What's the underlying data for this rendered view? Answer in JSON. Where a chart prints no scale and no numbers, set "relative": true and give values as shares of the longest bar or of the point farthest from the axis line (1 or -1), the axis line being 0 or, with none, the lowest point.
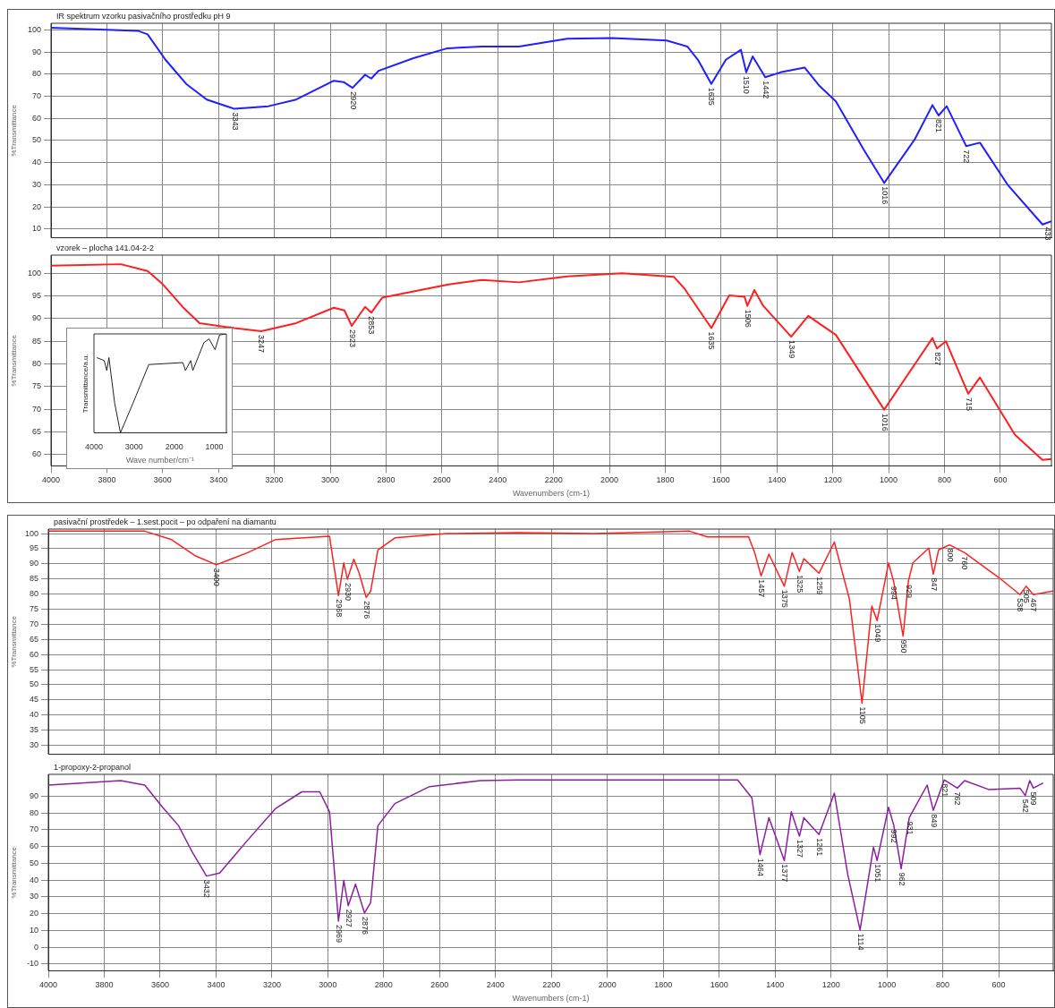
{
  "chart_data": [
    {
      "type": "line",
      "title": "IR spektrum vzorku pasivačního prostředku pH 9",
      "ylabel": "%Transmittance",
      "xlim": [
        4000,
        417
      ],
      "xticks": [
        4000,
        3800,
        3600,
        3400,
        3200,
        3000,
        2800,
        2600,
        2400,
        2200,
        2000,
        1800,
        1600,
        1400,
        1200,
        1000,
        800,
        600
      ],
      "ylim": [
        6,
        103
      ],
      "yticks": [
        100,
        90,
        80,
        70,
        60,
        50,
        40,
        30,
        20,
        10
      ],
      "grid": true,
      "tick_labels": "y",
      "series": [
        {
          "color": "#1f1fff",
          "x": [
            4000,
            3689,
            3654,
            3590,
            3516,
            3442,
            3343,
            3221,
            3122,
            2987,
            2952,
            2920,
            2875,
            2853,
            2827,
            2702,
            2580,
            2458,
            2324,
            2151,
            1990,
            1795,
            1721,
            1683,
            1635,
            1583,
            1529,
            1510,
            1487,
            1442,
            1388,
            1301,
            1250,
            1189,
            1090,
            1016,
            907,
            843,
            821,
            792,
            722,
            673,
            574,
            449,
            417
          ],
          "values": [
            101,
            99.6,
            98,
            86.5,
            75.6,
            68.5,
            64.3,
            65.5,
            68.5,
            77,
            76.4,
            73.8,
            79.7,
            78,
            81.5,
            87.2,
            91.7,
            92.5,
            92.5,
            96,
            96.3,
            95.2,
            92.5,
            86.5,
            75.6,
            86.5,
            91,
            80.8,
            88,
            78.6,
            80.8,
            83,
            75,
            67.7,
            46,
            30.8,
            50.4,
            66,
            61.3,
            65.5,
            47.4,
            49,
            30,
            12,
            13.5
          ]
        }
      ],
      "annotations": [
        {
          "text": "3343",
          "x": 3343,
          "y": 64.3
        },
        {
          "text": "2920",
          "x": 2920,
          "y": 73.8
        },
        {
          "text": "1635",
          "x": 1635,
          "y": 75.6
        },
        {
          "text": "1510",
          "x": 1510,
          "y": 80.8
        },
        {
          "text": "1442",
          "x": 1442,
          "y": 78.6
        },
        {
          "text": "1016",
          "x": 1016,
          "y": 30.8
        },
        {
          "text": "821",
          "x": 821,
          "y": 61.3
        },
        {
          "text": "722",
          "x": 722,
          "y": 47.4
        },
        {
          "text": "433",
          "x": 433,
          "y": 12.5
        }
      ]
    },
    {
      "type": "line",
      "title": "vzorek – plocha 141.04-2-2",
      "xlabel": "Wavenumbers (cm-1)",
      "ylabel": "%Transmittance",
      "xlim": [
        4000,
        417
      ],
      "xticks": [
        4000,
        3800,
        3600,
        3400,
        3200,
        3000,
        2800,
        2600,
        2400,
        2200,
        2000,
        1800,
        1600,
        1400,
        1200,
        1000,
        800,
        600
      ],
      "ylim": [
        57.5,
        104
      ],
      "yticks": [
        100,
        95,
        90,
        85,
        80,
        75,
        70,
        65,
        60
      ],
      "grid": true,
      "series": [
        {
          "color": "#ff1f1f",
          "x": [
            4000,
            3750,
            3654,
            3603,
            3529,
            3468,
            3343,
            3247,
            3122,
            2987,
            2949,
            2923,
            2875,
            2853,
            2814,
            2580,
            2458,
            2324,
            2151,
            1955,
            1769,
            1731,
            1635,
            1571,
            1516,
            1506,
            1481,
            1449,
            1349,
            1288,
            1189,
            1016,
            843,
            827,
            795,
            715,
            673,
            548,
            449,
            417
          ],
          "values": [
            101.7,
            102,
            100.5,
            97.8,
            92.6,
            89,
            87.9,
            87.2,
            89,
            92.4,
            91.8,
            88.4,
            92.6,
            91.3,
            94.6,
            97.5,
            98.5,
            98,
            99.3,
            100,
            99.2,
            96.6,
            87.9,
            95.1,
            94.8,
            92.8,
            96.3,
            92.8,
            86,
            90.6,
            86.4,
            69.9,
            85.7,
            83.4,
            85,
            73.4,
            77,
            64.4,
            58.8,
            59
          ]
        }
      ],
      "annotations": [
        {
          "text": "3247",
          "x": 3247,
          "y": 87.2
        },
        {
          "text": "2923",
          "x": 2923,
          "y": 88.4
        },
        {
          "text": "2853",
          "x": 2853,
          "y": 91.3
        },
        {
          "text": "1635",
          "x": 1635,
          "y": 87.9
        },
        {
          "text": "1506",
          "x": 1506,
          "y": 92.8
        },
        {
          "text": "1349",
          "x": 1349,
          "y": 86
        },
        {
          "text": "1016",
          "x": 1016,
          "y": 69.9
        },
        {
          "text": "827",
          "x": 827,
          "y": 83.4
        },
        {
          "text": "715",
          "x": 715,
          "y": 73.4
        }
      ]
    },
    {
      "type": "line",
      "relative": true,
      "xlabel": "Wave number/cm⁻¹",
      "ylabel": "Transmittance/a.u.",
      "xlim": [
        4000,
        700
      ],
      "xticks": [
        4000,
        3000,
        2000,
        1000
      ],
      "series": [
        {
          "color": "#222222",
          "x": [
            3928,
            3745,
            3680,
            3627,
            3484,
            3340,
            3026,
            2634,
            1785,
            1720,
            1589,
            1536,
            1262,
            1133,
            982,
            870,
            707
          ],
          "values": [
            0.76,
            0.73,
            0.63,
            0.76,
            0.3,
            0,
            0.3,
            0.69,
            0.71,
            0.63,
            0.73,
            0.63,
            0.91,
            0.95,
            0.84,
            0.99,
            1
          ]
        }
      ]
    },
    {
      "type": "line",
      "title": "pasivační prostředek – 1.sest.pocit – po odpaření na diamantu",
      "ylabel": "%Transmittance",
      "xlim": [
        4000,
        405
      ],
      "xticks": [
        4000,
        3800,
        3600,
        3400,
        3200,
        3000,
        2800,
        2600,
        2400,
        2200,
        2000,
        1800,
        1600,
        1400,
        1200,
        1000,
        800,
        600
      ],
      "ylim": [
        27,
        101.5
      ],
      "yticks": [
        100,
        95,
        90,
        85,
        80,
        75,
        70,
        65,
        60,
        55,
        50,
        45,
        40,
        35,
        30
      ],
      "grid": true,
      "tick_labels": "y",
      "series": [
        {
          "color": "#ff2020",
          "x": [
            4000,
            3655,
            3559,
            3473,
            3399,
            3287,
            3188,
            2994,
            2962,
            2943,
            2930,
            2907,
            2888,
            2863,
            2847,
            2821,
            2760,
            2575,
            2320,
            2048,
            1706,
            1642,
            1495,
            1473,
            1450,
            1422,
            1367,
            1339,
            1313,
            1297,
            1243,
            1188,
            1134,
            1089,
            1054,
            1035,
            994,
            975,
            942,
            923,
            907,
            850,
            834,
            815,
            776,
            722,
            600,
            524,
            502,
            476,
            405
          ],
          "values": [
            100.8,
            100.8,
            98,
            92.6,
            89.7,
            93.7,
            98,
            99.1,
            79.5,
            90.3,
            84.9,
            91.5,
            86.9,
            78.9,
            80.9,
            94.6,
            98.6,
            100,
            100.3,
            100,
            100.8,
            98.9,
            99,
            93.7,
            86,
            93.2,
            82.6,
            93.7,
            87.5,
            91.7,
            86.9,
            97.2,
            78.3,
            43.9,
            76,
            71.2,
            90.3,
            83.8,
            66.1,
            84.3,
            90.3,
            95.2,
            86.6,
            94.6,
            96.3,
            93.7,
            85.5,
            79.8,
            82.6,
            79.8,
            81
          ]
        }
      ],
      "annotations": [
        {
          "text": "3400",
          "x": 3399,
          "y": 89.7
        },
        {
          "text": "2968",
          "x": 2962,
          "y": 79.5
        },
        {
          "text": "2930",
          "x": 2930,
          "y": 84.9
        },
        {
          "text": "2876",
          "x": 2863,
          "y": 78.9
        },
        {
          "text": "1457",
          "x": 1450,
          "y": 86
        },
        {
          "text": "1375",
          "x": 1367,
          "y": 82.6
        },
        {
          "text": "1325",
          "x": 1313,
          "y": 87.5
        },
        {
          "text": "1259",
          "x": 1243,
          "y": 86.9
        },
        {
          "text": "1105",
          "x": 1089,
          "y": 43.9
        },
        {
          "text": "1049",
          "x": 1035,
          "y": 71.2
        },
        {
          "text": "994",
          "x": 975,
          "y": 83.8
        },
        {
          "text": "950",
          "x": 942,
          "y": 66.1
        },
        {
          "text": "929",
          "x": 923,
          "y": 84.3
        },
        {
          "text": "847",
          "x": 834,
          "y": 86.6
        },
        {
          "text": "800",
          "x": 776,
          "y": 96.3
        },
        {
          "text": "760",
          "x": 722,
          "y": 93.7
        },
        {
          "text": "538",
          "x": 524,
          "y": 79.8
        },
        {
          "text": "505",
          "x": 502,
          "y": 82.6
        },
        {
          "text": "467",
          "x": 476,
          "y": 79.8
        }
      ]
    },
    {
      "type": "line",
      "title": "1-propoxy-2-propanol",
      "xlabel": "Wavenumbers (cm-1)",
      "ylabel": "%Transmittance",
      "xlim": [
        4000,
        405
      ],
      "xticks": [
        4000,
        3800,
        3600,
        3400,
        3200,
        3000,
        2800,
        2600,
        2400,
        2200,
        2000,
        1800,
        1600,
        1400,
        1200,
        1000,
        800,
        600
      ],
      "ylim": [
        -14,
        103
      ],
      "yticks": [
        90,
        80,
        70,
        60,
        50,
        40,
        30,
        20,
        10,
        0,
        -10
      ],
      "grid": true,
      "series": [
        {
          "color": "#8b1fa0",
          "x": [
            4000,
            3741,
            3655,
            3594,
            3534,
            3486,
            3434,
            3387,
            3288,
            3188,
            3093,
            3029,
            2994,
            2962,
            2943,
            2927,
            2901,
            2869,
            2847,
            2821,
            2760,
            2636,
            2454,
            2320,
            1767,
            1534,
            1483,
            1454,
            1422,
            1367,
            1342,
            1313,
            1297,
            1243,
            1188,
            1140,
            1096,
            1048,
            1035,
            994,
            975,
            949,
            920,
            856,
            834,
            795,
            748,
            722,
            636,
            524,
            505,
            489,
            476,
            441
          ],
          "values": [
            96.6,
            99.3,
            96.6,
            83.9,
            72.4,
            57,
            42.4,
            44.2,
            63.6,
            82.5,
            92.6,
            92.6,
            80.7,
            15.6,
            39.8,
            24.8,
            37.6,
            20.4,
            26.6,
            72.4,
            85.6,
            95.7,
            99.3,
            99.7,
            99.7,
            99.7,
            89,
            55.2,
            77.2,
            51.7,
            80.7,
            66.2,
            77.2,
            67.1,
            91.8,
            43.3,
            10.3,
            59.6,
            51.7,
            83.4,
            72.4,
            46.8,
            77.2,
            96.6,
            81.6,
            99.7,
            94.8,
            99.3,
            94,
            94.8,
            90.4,
            99.3,
            94.8,
            97.9
          ]
        }
      ],
      "annotations": [
        {
          "text": "3432",
          "x": 3434,
          "y": 42.4
        },
        {
          "text": "2969",
          "x": 2962,
          "y": 15.6
        },
        {
          "text": "2927",
          "x": 2927,
          "y": 24.8
        },
        {
          "text": "2876",
          "x": 2869,
          "y": 20.4
        },
        {
          "text": "1464",
          "x": 1454,
          "y": 55.2
        },
        {
          "text": "1377",
          "x": 1367,
          "y": 51.7
        },
        {
          "text": "1327",
          "x": 1313,
          "y": 66.2
        },
        {
          "text": "1261",
          "x": 1243,
          "y": 67.1
        },
        {
          "text": "1114",
          "x": 1096,
          "y": 10.3
        },
        {
          "text": "1051",
          "x": 1035,
          "y": 51.7
        },
        {
          "text": "992",
          "x": 975,
          "y": 72.4
        },
        {
          "text": "962",
          "x": 949,
          "y": 46.8
        },
        {
          "text": "931",
          "x": 920,
          "y": 77.2
        },
        {
          "text": "849",
          "x": 834,
          "y": 81.6
        },
        {
          "text": "821",
          "x": 795,
          "y": 99.7
        },
        {
          "text": "762",
          "x": 748,
          "y": 94.8
        },
        {
          "text": "542",
          "x": 505,
          "y": 90.4
        },
        {
          "text": "509",
          "x": 476,
          "y": 94.8
        }
      ]
    }
  ]
}
